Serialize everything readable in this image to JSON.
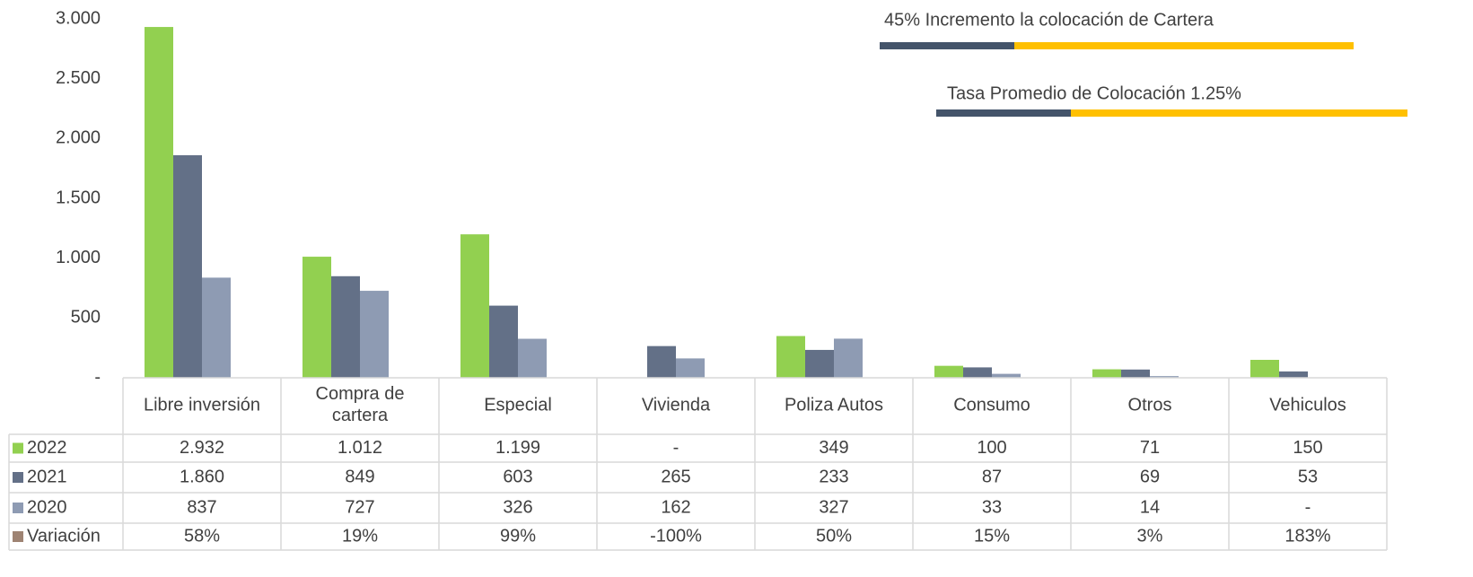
{
  "chart_data": {
    "type": "bar",
    "categories": [
      "Libre inversión",
      "Compra de cartera",
      "Especial",
      "Vivienda",
      "Poliza Autos",
      "Consumo",
      "Otros",
      "Vehiculos"
    ],
    "series": [
      {
        "name": "2022",
        "color": "#92d050",
        "values": [
          2932,
          1012,
          1199,
          0,
          349,
          100,
          71,
          150
        ],
        "value_labels": [
          "2.932",
          "1.012",
          "1.199",
          "-",
          "349",
          "100",
          "71",
          "150"
        ]
      },
      {
        "name": "2021",
        "color": "#637087",
        "values": [
          1860,
          849,
          603,
          265,
          233,
          87,
          69,
          53
        ],
        "value_labels": [
          "1.860",
          "849",
          "603",
          "265",
          "233",
          "87",
          "69",
          "53"
        ]
      },
      {
        "name": "2020",
        "color": "#8e9bb3",
        "values": [
          837,
          727,
          326,
          162,
          327,
          33,
          14,
          0
        ],
        "value_labels": [
          "837",
          "727",
          "326",
          "162",
          "327",
          "33",
          "14",
          "-"
        ]
      },
      {
        "name": "Variación",
        "color": "#9e8373",
        "values": [
          58,
          19,
          99,
          -100,
          50,
          15,
          3,
          183
        ],
        "value_labels": [
          "58%",
          "19%",
          "99%",
          "-100%",
          "50%",
          "15%",
          "3%",
          "183%"
        ]
      }
    ],
    "ylim": [
      0,
      3000
    ],
    "yticks": [
      {
        "value": 0,
        "label": "-"
      },
      500,
      {
        "value": 1000,
        "label": "1.000"
      },
      {
        "value": 1500,
        "label": "1.500"
      },
      {
        "value": 2000,
        "label": "2.000"
      },
      {
        "value": 2500,
        "label": "2.500"
      },
      {
        "value": 3000,
        "label": "3.000"
      }
    ],
    "annotations": [
      "45% Incremento la colocación de Cartera",
      "Tasa Promedio de Colocación  1.25%"
    ]
  }
}
